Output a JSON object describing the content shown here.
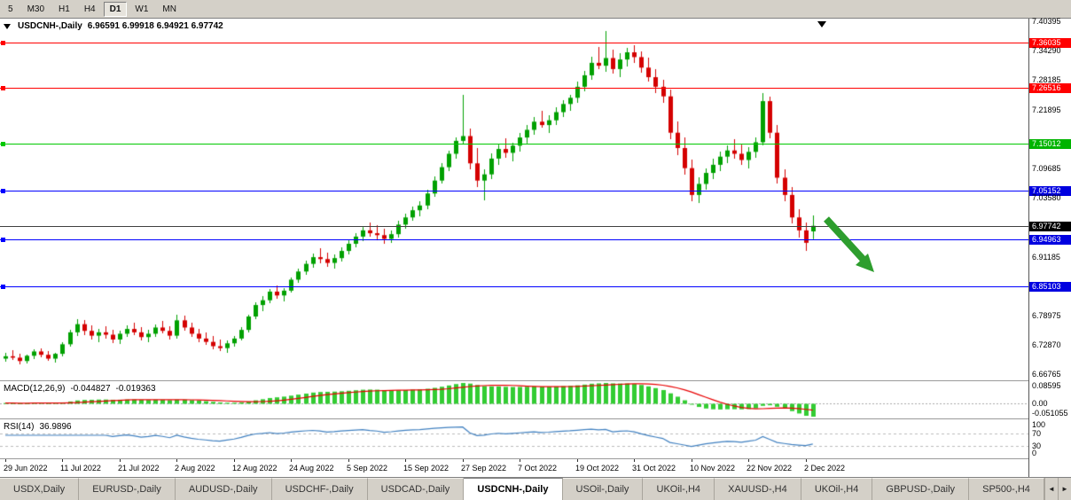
{
  "toolbar": {
    "timeframes": [
      {
        "label": "5",
        "active": false
      },
      {
        "label": "M30",
        "active": false
      },
      {
        "label": "H1",
        "active": false
      },
      {
        "label": "H4",
        "active": false
      },
      {
        "label": "D1",
        "active": true
      },
      {
        "label": "W1",
        "active": false
      },
      {
        "label": "MN",
        "active": false
      }
    ]
  },
  "chart": {
    "symbol_label": "USDCNH-,Daily",
    "ohlc_values": "6.96591 6.99918 6.94921 6.97742"
  },
  "chart_data": {
    "type": "candlestick",
    "title": "USDCNH-,Daily",
    "symbol": "USDCNH",
    "timeframe": "Daily",
    "current_ohlc": {
      "open": 6.96591,
      "high": 6.99918,
      "low": 6.94921,
      "close": 6.97742
    },
    "ylim": [
      6.6547,
      7.4104
    ],
    "bars_per_x_label": 8,
    "x_labels": [
      "29 Jun 2022",
      "11 Jul 2022",
      "21 Jul 2022",
      "2 Aug 2022",
      "12 Aug 2022",
      "24 Aug 2022",
      "5 Sep 2022",
      "15 Sep 2022",
      "27 Sep 2022",
      "7 Oct 2022",
      "19 Oct 2022",
      "31 Oct 2022",
      "10 Nov 2022",
      "22 Nov 2022",
      "2 Dec 2022"
    ],
    "ohlc": [
      [
        6.7,
        6.712,
        6.693,
        6.705
      ],
      [
        6.705,
        6.718,
        6.698,
        6.702
      ],
      [
        6.702,
        6.71,
        6.688,
        6.695
      ],
      [
        6.695,
        6.708,
        6.69,
        6.706
      ],
      [
        6.706,
        6.72,
        6.7,
        6.715
      ],
      [
        6.715,
        6.722,
        6.702,
        6.708
      ],
      [
        6.708,
        6.716,
        6.695,
        6.7
      ],
      [
        6.7,
        6.712,
        6.692,
        6.71
      ],
      [
        6.71,
        6.735,
        6.705,
        6.73
      ],
      [
        6.73,
        6.76,
        6.725,
        6.755
      ],
      [
        6.755,
        6.782,
        6.748,
        6.772
      ],
      [
        6.772,
        6.78,
        6.75,
        6.758
      ],
      [
        6.758,
        6.77,
        6.74,
        6.748
      ],
      [
        6.748,
        6.762,
        6.735,
        6.755
      ],
      [
        6.755,
        6.768,
        6.742,
        6.75
      ],
      [
        6.75,
        6.76,
        6.732,
        6.74
      ],
      [
        6.74,
        6.758,
        6.73,
        6.752
      ],
      [
        6.752,
        6.77,
        6.745,
        6.762
      ],
      [
        6.762,
        6.775,
        6.75,
        6.755
      ],
      [
        6.755,
        6.765,
        6.738,
        6.745
      ],
      [
        6.745,
        6.76,
        6.735,
        6.752
      ],
      [
        6.752,
        6.772,
        6.746,
        6.765
      ],
      [
        6.765,
        6.778,
        6.752,
        6.758
      ],
      [
        6.758,
        6.768,
        6.74,
        6.748
      ],
      [
        6.748,
        6.792,
        6.742,
        6.78
      ],
      [
        6.78,
        6.79,
        6.758,
        6.765
      ],
      [
        6.765,
        6.775,
        6.745,
        6.752
      ],
      [
        6.752,
        6.762,
        6.735,
        6.742
      ],
      [
        6.742,
        6.755,
        6.728,
        6.735
      ],
      [
        6.735,
        6.748,
        6.72,
        6.726
      ],
      [
        6.726,
        6.74,
        6.715,
        6.722
      ],
      [
        6.722,
        6.738,
        6.712,
        6.732
      ],
      [
        6.732,
        6.748,
        6.725,
        6.742
      ],
      [
        6.742,
        6.765,
        6.738,
        6.76
      ],
      [
        6.76,
        6.792,
        6.755,
        6.788
      ],
      [
        6.788,
        6.818,
        6.782,
        6.812
      ],
      [
        6.812,
        6.83,
        6.8,
        6.822
      ],
      [
        6.822,
        6.845,
        6.815,
        6.84
      ],
      [
        6.84,
        6.852,
        6.825,
        6.832
      ],
      [
        6.832,
        6.848,
        6.82,
        6.842
      ],
      [
        6.842,
        6.87,
        6.838,
        6.865
      ],
      [
        6.865,
        6.888,
        6.858,
        6.882
      ],
      [
        6.882,
        6.905,
        6.875,
        6.898
      ],
      [
        6.898,
        6.92,
        6.89,
        6.912
      ],
      [
        6.912,
        6.93,
        6.9,
        6.908
      ],
      [
        6.908,
        6.922,
        6.892,
        6.9
      ],
      [
        6.9,
        6.918,
        6.888,
        6.91
      ],
      [
        6.91,
        6.932,
        6.902,
        6.925
      ],
      [
        6.925,
        6.948,
        6.918,
        6.94
      ],
      [
        6.94,
        6.962,
        6.932,
        6.955
      ],
      [
        6.955,
        6.975,
        6.945,
        6.968
      ],
      [
        6.968,
        6.985,
        6.955,
        6.962
      ],
      [
        6.962,
        6.978,
        6.948,
        6.958
      ],
      [
        6.958,
        6.972,
        6.94,
        6.95
      ],
      [
        6.95,
        6.968,
        6.942,
        6.96
      ],
      [
        6.96,
        6.988,
        6.952,
        6.98
      ],
      [
        6.98,
        7.002,
        6.972,
        6.995
      ],
      [
        6.995,
        7.018,
        6.988,
        7.01
      ],
      [
        7.01,
        7.028,
        6.998,
        7.02
      ],
      [
        7.02,
        7.052,
        7.012,
        7.045
      ],
      [
        7.045,
        7.08,
        7.038,
        7.072
      ],
      [
        7.072,
        7.108,
        7.065,
        7.1
      ],
      [
        7.1,
        7.135,
        7.092,
        7.128
      ],
      [
        7.128,
        7.162,
        7.118,
        7.155
      ],
      [
        7.155,
        7.252,
        7.148,
        7.165
      ],
      [
        7.165,
        7.18,
        7.095,
        7.108
      ],
      [
        7.108,
        7.14,
        7.058,
        7.072
      ],
      [
        7.072,
        7.095,
        7.03,
        7.085
      ],
      [
        7.085,
        7.128,
        7.075,
        7.118
      ],
      [
        7.118,
        7.148,
        7.105,
        7.138
      ],
      [
        7.138,
        7.16,
        7.12,
        7.13
      ],
      [
        7.13,
        7.152,
        7.112,
        7.145
      ],
      [
        7.145,
        7.172,
        7.132,
        7.162
      ],
      [
        7.162,
        7.188,
        7.15,
        7.178
      ],
      [
        7.178,
        7.205,
        7.168,
        7.195
      ],
      [
        7.195,
        7.218,
        7.182,
        7.188
      ],
      [
        7.188,
        7.208,
        7.172,
        7.198
      ],
      [
        7.198,
        7.225,
        7.188,
        7.215
      ],
      [
        7.215,
        7.24,
        7.205,
        7.232
      ],
      [
        7.232,
        7.252,
        7.218,
        7.245
      ],
      [
        7.245,
        7.278,
        7.235,
        7.268
      ],
      [
        7.268,
        7.302,
        7.258,
        7.292
      ],
      [
        7.292,
        7.33,
        7.282,
        7.318
      ],
      [
        7.318,
        7.352,
        7.305,
        7.312
      ],
      [
        7.312,
        7.385,
        7.3,
        7.328
      ],
      [
        7.328,
        7.345,
        7.295,
        7.305
      ],
      [
        7.305,
        7.338,
        7.288,
        7.325
      ],
      [
        7.325,
        7.35,
        7.31,
        7.34
      ],
      [
        7.34,
        7.355,
        7.318,
        7.33
      ],
      [
        7.33,
        7.342,
        7.298,
        7.308
      ],
      [
        7.308,
        7.328,
        7.278,
        7.288
      ],
      [
        7.288,
        7.305,
        7.255,
        7.268
      ],
      [
        7.268,
        7.282,
        7.235,
        7.248
      ],
      [
        7.248,
        7.262,
        7.158,
        7.172
      ],
      [
        7.172,
        7.195,
        7.125,
        7.14
      ],
      [
        7.14,
        7.162,
        7.085,
        7.098
      ],
      [
        7.098,
        7.115,
        7.028,
        7.042
      ],
      [
        7.042,
        7.078,
        7.025,
        7.065
      ],
      [
        7.065,
        7.098,
        7.052,
        7.088
      ],
      [
        7.088,
        7.118,
        7.075,
        7.105
      ],
      [
        7.105,
        7.132,
        7.092,
        7.122
      ],
      [
        7.122,
        7.145,
        7.108,
        7.135
      ],
      [
        7.135,
        7.158,
        7.118,
        7.128
      ],
      [
        7.128,
        7.148,
        7.105,
        7.115
      ],
      [
        7.115,
        7.142,
        7.098,
        7.132
      ],
      [
        7.132,
        7.162,
        7.12,
        7.152
      ],
      [
        7.152,
        7.255,
        7.145,
        7.238
      ],
      [
        7.238,
        7.248,
        7.16,
        7.172
      ],
      [
        7.172,
        7.188,
        7.065,
        7.078
      ],
      [
        7.078,
        7.095,
        7.028,
        7.042
      ],
      [
        7.042,
        7.058,
        6.982,
        6.995
      ],
      [
        6.995,
        7.012,
        6.952,
        6.968
      ],
      [
        6.968,
        6.985,
        6.925,
        6.942
      ],
      [
        6.96591,
        6.99918,
        6.94921,
        6.97742
      ]
    ],
    "hlines": [
      {
        "price": 7.36035,
        "color": "#FF0000",
        "name": "resistance-line-1",
        "marker": true
      },
      {
        "price": 7.26516,
        "color": "#FF0000",
        "name": "resistance-line-2",
        "marker": true
      },
      {
        "price": 7.15012,
        "color": "#00C800",
        "name": "pivot-line-green",
        "marker": true
      },
      {
        "price": 7.05152,
        "color": "#0000FF",
        "name": "support-line-1",
        "marker": true
      },
      {
        "price": 6.97742,
        "color": "#404040",
        "name": "current-price-line",
        "marker": false
      },
      {
        "price": 6.94963,
        "color": "#0000FF",
        "name": "support-line-2",
        "marker": true
      },
      {
        "price": 6.85103,
        "color": "#0000FF",
        "name": "support-line-3",
        "marker": true
      }
    ],
    "y_axis_labels": [
      {
        "text": "7.40395",
        "price": 7.40395,
        "style": "plain"
      },
      {
        "text": "7.36035",
        "price": 7.36035,
        "style": "red"
      },
      {
        "text": "7.34290",
        "price": 7.3429,
        "style": "plain"
      },
      {
        "text": "7.28185",
        "price": 7.28185,
        "style": "plain"
      },
      {
        "text": "7.26516",
        "price": 7.26516,
        "style": "red"
      },
      {
        "text": "7.21895",
        "price": 7.21895,
        "style": "plain"
      },
      {
        "text": "7.15012",
        "price": 7.15012,
        "style": "green"
      },
      {
        "text": "7.09685",
        "price": 7.09685,
        "style": "plain"
      },
      {
        "text": "7.05152",
        "price": 7.05152,
        "style": "blue"
      },
      {
        "text": "7.03580",
        "price": 7.0358,
        "style": "plain"
      },
      {
        "text": "6.97742",
        "price": 6.97742,
        "style": "black"
      },
      {
        "text": "6.94963",
        "price": 6.94963,
        "style": "blue"
      },
      {
        "text": "6.91185",
        "price": 6.91185,
        "style": "plain"
      },
      {
        "text": "6.85103",
        "price": 6.85103,
        "style": "blue"
      },
      {
        "text": "6.78975",
        "price": 6.78975,
        "style": "plain"
      },
      {
        "text": "6.72870",
        "price": 6.7287,
        "style": "plain"
      },
      {
        "text": "6.66765",
        "price": 6.66765,
        "style": "plain"
      }
    ],
    "indicators": [
      {
        "name": "MACD",
        "params": [
          12,
          26,
          9
        ],
        "value_main": -0.044827,
        "value_signal": -0.019363
      },
      {
        "name": "RSI",
        "params": [
          14
        ],
        "value": 36.9896,
        "levels": [
          70,
          30
        ]
      }
    ],
    "annotations": [
      {
        "type": "arrow",
        "direction": "down-right",
        "color": "#2E9E2E",
        "meaning": "sell-signal"
      }
    ]
  },
  "macd_panel": {
    "label": "MACD(12,26,9)",
    "value_main": "-0.044827",
    "value_signal": "-0.019363",
    "axis": [
      {
        "text": "0.08595",
        "value": 0.08595
      },
      {
        "text": "0.00",
        "value": 0
      },
      {
        "text": "-0.051055",
        "value": -0.051055
      }
    ]
  },
  "rsi_panel": {
    "label": "RSI(14)",
    "value": "36.9896",
    "levels": [
      70,
      30
    ],
    "axis": [
      {
        "text": "100",
        "value": 100
      },
      {
        "text": "70",
        "value": 70
      },
      {
        "text": "30",
        "value": 30
      },
      {
        "text": "0",
        "value": 0
      }
    ]
  },
  "tabs": {
    "items": [
      {
        "label": "USDX,Daily",
        "active": false
      },
      {
        "label": "EURUSD-,Daily",
        "active": false
      },
      {
        "label": "AUDUSD-,Daily",
        "active": false
      },
      {
        "label": "USDCHF-,Daily",
        "active": false
      },
      {
        "label": "USDCAD-,Daily",
        "active": false
      },
      {
        "label": "USDCNH-,Daily",
        "active": true
      },
      {
        "label": "USOil-,Daily",
        "active": false
      },
      {
        "label": "UKOil-,H4",
        "active": false
      },
      {
        "label": "XAUUSD-,H4",
        "active": false
      },
      {
        "label": "UKOil-,H4",
        "active": false
      },
      {
        "label": "GBPUSD-,Daily",
        "active": false
      },
      {
        "label": "SP500-,H4",
        "active": false
      }
    ],
    "scroll_left": "◄",
    "scroll_right": "►"
  },
  "colors": {
    "candle_up": "#00A000",
    "candle_down": "#D40000",
    "macd_bars": "#33CC33",
    "macd_signal": "#E80000",
    "rsi_line": "#4080C0",
    "zero_line": "#A8A8A8",
    "rsi_levels": "#BBBBBB",
    "arrow_green": "#2E9E2E",
    "axis_bg_red": "#FF0000",
    "axis_bg_green": "#00B400",
    "axis_bg_blue": "#0000E0",
    "axis_bg_black": "#000000"
  }
}
